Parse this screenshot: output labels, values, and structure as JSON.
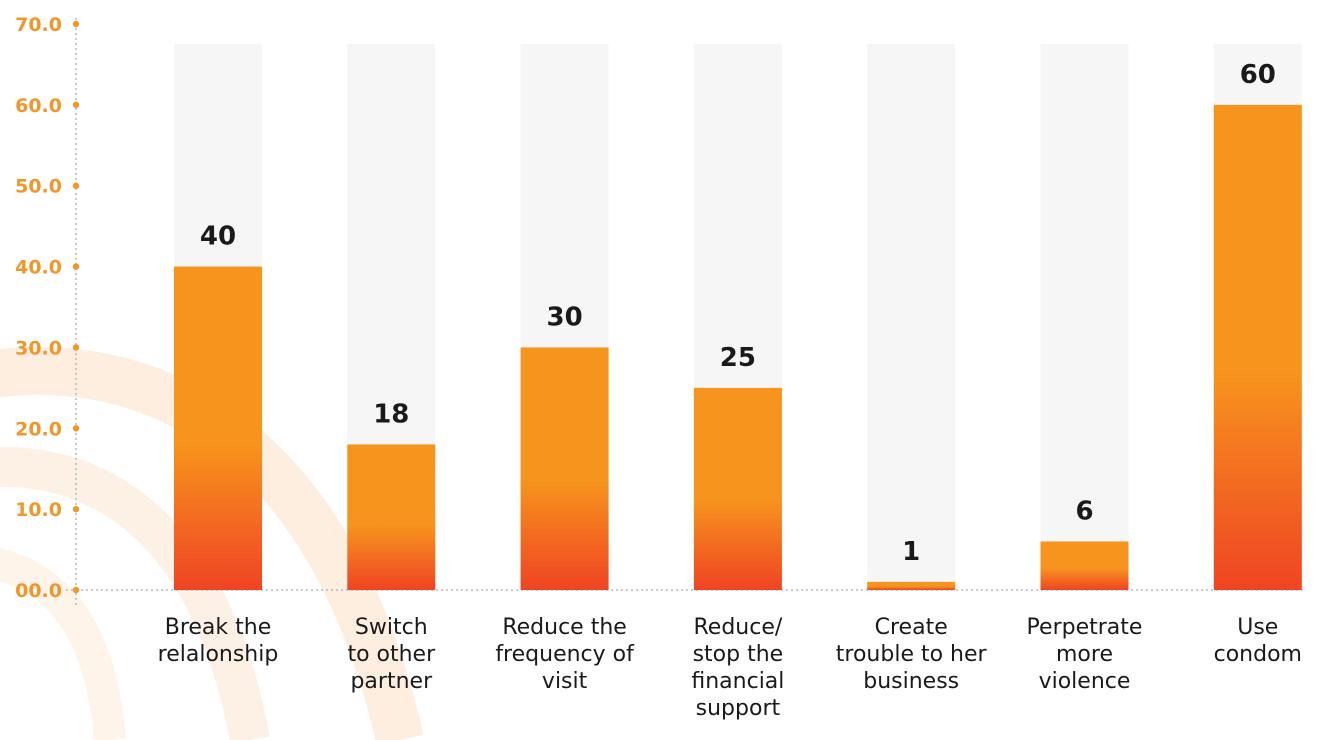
{
  "colors": {
    "bar_top": "#f7941d",
    "bar_bottom": "#ef4423",
    "track": "#f6f6f6",
    "axis_text": "#f3962a",
    "decor_arc": "#fdeee0"
  },
  "chart_data": {
    "type": "bar",
    "categories": [
      "Break the\nrelalonship",
      "Switch\nto other\npartner",
      "Reduce the\nfrequency of\nvisit",
      "Reduce/\nstop the\nfinancial\nsupport",
      "Create\ntrouble to her\nbusiness",
      "Perpetrate\nmore\nviolence",
      "Use\ncondom"
    ],
    "values": [
      40,
      18,
      30,
      25,
      1,
      6,
      60
    ],
    "value_labels": [
      "40",
      "18",
      "30",
      "25",
      "1",
      "6",
      "60"
    ],
    "ylim": [
      0,
      70
    ],
    "yticks": [
      "00.0",
      "10.0",
      "20.0",
      "30.0",
      "40.0",
      "50.0",
      "60.0",
      "70.0"
    ],
    "title": "",
    "xlabel": "",
    "ylabel": "",
    "grid": false
  }
}
